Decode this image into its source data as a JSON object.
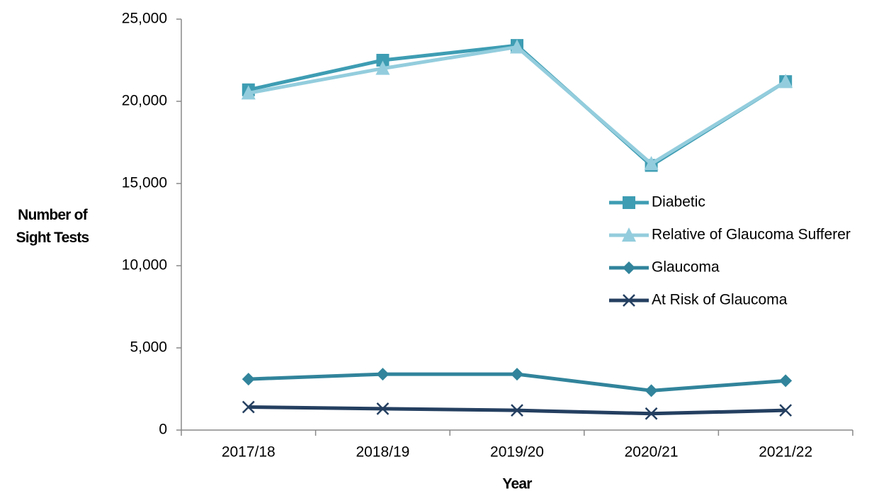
{
  "chart_data": {
    "type": "line",
    "xlabel": "Year",
    "ylabel": "Number of Sight Tests",
    "categories": [
      "2017/18",
      "2018/19",
      "2019/20",
      "2020/21",
      "2021/22"
    ],
    "series": [
      {
        "name": "Diabetic",
        "color": "#3e9db3",
        "marker": "square",
        "values": [
          20700,
          22500,
          23400,
          16100,
          21200
        ]
      },
      {
        "name": "Relative of Glaucoma Sufferer",
        "color": "#93cddd",
        "marker": "triangle",
        "values": [
          20500,
          22000,
          23300,
          16200,
          21200
        ]
      },
      {
        "name": "Glaucoma",
        "color": "#31849b",
        "marker": "diamond",
        "values": [
          3100,
          3400,
          3400,
          2400,
          3000
        ]
      },
      {
        "name": "At Risk of Glaucoma",
        "color": "#243f60",
        "marker": "x",
        "values": [
          1400,
          1300,
          1200,
          1000,
          1200
        ]
      }
    ],
    "ylim": [
      0,
      25000
    ],
    "yticks": [
      0,
      {
        "value": 5000,
        "label": "5,000"
      },
      {
        "value": 10000,
        "label": "10,000"
      },
      {
        "value": 15000,
        "label": "15,000"
      },
      {
        "value": 20000,
        "label": "20,000"
      },
      {
        "value": 25000,
        "label": "25,000"
      }
    ],
    "grid": false,
    "legend": "center right"
  }
}
